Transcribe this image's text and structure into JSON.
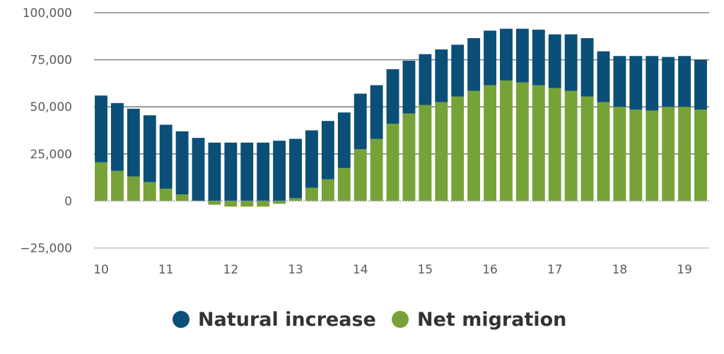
{
  "chart_data": {
    "type": "bar",
    "stacked": true,
    "x": [
      10.0,
      10.25,
      10.5,
      10.75,
      11.0,
      11.25,
      11.5,
      11.75,
      12.0,
      12.25,
      12.5,
      12.75,
      13.0,
      13.25,
      13.5,
      13.75,
      14.0,
      14.25,
      14.5,
      14.75,
      15.0,
      15.25,
      15.5,
      15.75,
      16.0,
      16.25,
      16.5,
      16.75,
      17.0,
      17.25,
      17.5,
      17.75,
      18.0,
      18.25,
      18.5,
      18.75,
      19.0,
      19.25
    ],
    "series": [
      {
        "name": "Net migration",
        "color": "#77a237",
        "values": [
          20500,
          16000,
          13000,
          10000,
          6500,
          3500,
          0,
          -2000,
          -3000,
          -3000,
          -3000,
          -1500,
          1500,
          7000,
          11500,
          17500,
          27500,
          33000,
          41000,
          46500,
          51000,
          52500,
          55500,
          58500,
          61500,
          64000,
          63000,
          61500,
          60000,
          58500,
          55500,
          52500,
          50000,
          48500,
          48000,
          50000,
          50000,
          48500
        ]
      },
      {
        "name": "Natural increase",
        "color": "#0a4f78",
        "values": [
          35500,
          36000,
          36000,
          35500,
          34000,
          33500,
          33500,
          31000,
          31000,
          31000,
          31000,
          32000,
          31500,
          30500,
          31000,
          29500,
          29500,
          28500,
          29000,
          28000,
          27000,
          28000,
          27500,
          28000,
          29000,
          27500,
          28500,
          29500,
          28500,
          30000,
          31000,
          27000,
          27000,
          28500,
          29000,
          26500,
          27000,
          26500
        ]
      }
    ],
    "ylim": [
      -25000,
      100000
    ],
    "yticks": [
      100000,
      75000,
      50000,
      25000,
      0,
      -25000
    ],
    "ytick_labels": [
      "100,000",
      "75,000",
      "50,000",
      "25,000",
      "0",
      "−25,000"
    ],
    "xticks": [
      10,
      11,
      12,
      13,
      14,
      15,
      16,
      17,
      18,
      19
    ],
    "xtick_labels": [
      "10",
      "11",
      "12",
      "13",
      "14",
      "15",
      "16",
      "17",
      "18",
      "19"
    ],
    "title": "",
    "xlabel": "",
    "ylabel": "",
    "legend_position": "bottom-center",
    "legend": [
      {
        "label": "Natural increase",
        "color": "#0a4f78"
      },
      {
        "label": "Net migration",
        "color": "#77a237"
      }
    ],
    "grid": true
  }
}
